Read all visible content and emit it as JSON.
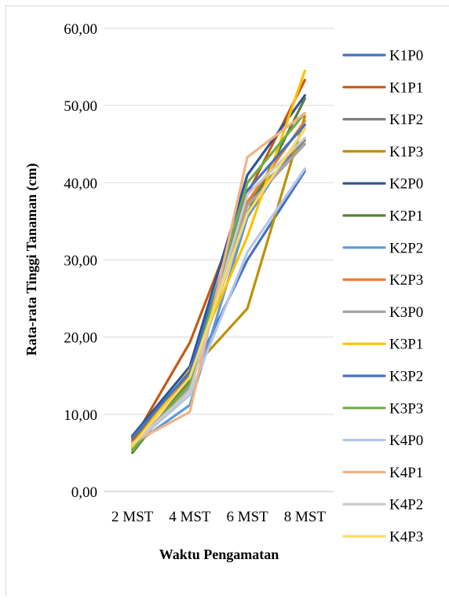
{
  "chart_data": {
    "type": "line",
    "title": "",
    "xlabel": "Waktu Pengamatan",
    "ylabel": "Rata-rata Tinggi Tanaman (cm)",
    "categories": [
      "2 MST",
      "4 MST",
      "6 MST",
      "8 MST"
    ],
    "ylim": [
      0,
      60
    ],
    "yticks": [
      "0,00",
      "10,00",
      "20,00",
      "30,00",
      "40,00",
      "50,00",
      "60,00"
    ],
    "grid": true,
    "legend_position": "right",
    "series": [
      {
        "name": "K1P0",
        "color": "#4472C4",
        "values": [
          6.8,
          14.5,
          30.0,
          41.5
        ]
      },
      {
        "name": "K1P1",
        "color": "#C55A11",
        "values": [
          6.5,
          19.3,
          38.5,
          53.3
        ]
      },
      {
        "name": "K1P2",
        "color": "#7F7F7F",
        "values": [
          6.3,
          15.0,
          37.5,
          45.5
        ]
      },
      {
        "name": "K1P3",
        "color": "#BF9000",
        "values": [
          6.2,
          15.5,
          23.7,
          48.6
        ]
      },
      {
        "name": "K2P0",
        "color": "#2F5597",
        "values": [
          7.2,
          16.2,
          41.0,
          51.3
        ]
      },
      {
        "name": "K2P1",
        "color": "#548235",
        "values": [
          5.0,
          14.5,
          36.0,
          50.9
        ]
      },
      {
        "name": "K2P2",
        "color": "#5B9BD5",
        "values": [
          5.9,
          11.2,
          35.5,
          47.0
        ]
      },
      {
        "name": "K2P3",
        "color": "#ED7D31",
        "values": [
          5.5,
          14.0,
          37.5,
          48.0
        ]
      },
      {
        "name": "K3P0",
        "color": "#A5A5A5",
        "values": [
          6.0,
          13.5,
          37.0,
          45.0
        ]
      },
      {
        "name": "K3P1",
        "color": "#FFC000",
        "values": [
          5.8,
          15.8,
          33.0,
          54.5
        ]
      },
      {
        "name": "K3P2",
        "color": "#4472C4",
        "values": [
          7.0,
          15.5,
          39.0,
          47.5
        ]
      },
      {
        "name": "K3P3",
        "color": "#70AD47",
        "values": [
          5.3,
          14.0,
          40.0,
          49.0
        ]
      },
      {
        "name": "K4P0",
        "color": "#B4C7E7",
        "values": [
          6.0,
          12.5,
          31.0,
          41.8
        ]
      },
      {
        "name": "K4P1",
        "color": "#F4B183",
        "values": [
          6.3,
          10.3,
          43.3,
          49.0
        ]
      },
      {
        "name": "K4P2",
        "color": "#C9C9C9",
        "values": [
          6.1,
          13.0,
          38.5,
          45.8
        ]
      },
      {
        "name": "K4P3",
        "color": "#FFD966",
        "values": [
          6.0,
          14.8,
          36.0,
          47.0
        ]
      }
    ]
  }
}
